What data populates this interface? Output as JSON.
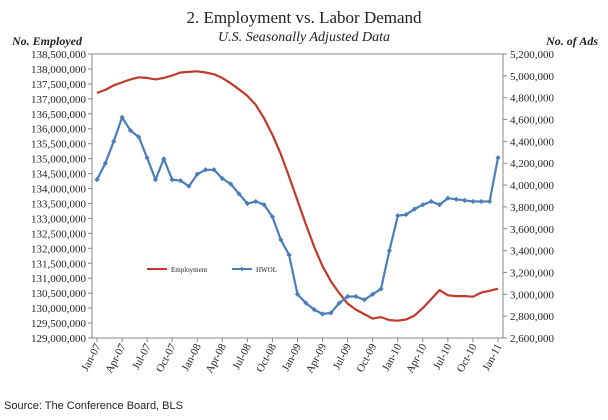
{
  "chart_data": {
    "type": "line",
    "title": "2. Employment vs. Labor Demand",
    "subtitle": "U.S. Seasonally Adjusted Data",
    "ylabel_left": "No. Employed",
    "ylabel_right": "No. of Ads",
    "source": "Source: The Conference Board, BLS",
    "x": [
      "Jan-07",
      "Feb-07",
      "Mar-07",
      "Apr-07",
      "May-07",
      "Jun-07",
      "Jul-07",
      "Aug-07",
      "Sep-07",
      "Oct-07",
      "Nov-07",
      "Dec-07",
      "Jan-08",
      "Feb-08",
      "Mar-08",
      "Apr-08",
      "May-08",
      "Jun-08",
      "Jul-08",
      "Aug-08",
      "Sep-08",
      "Oct-08",
      "Nov-08",
      "Dec-08",
      "Jan-09",
      "Feb-09",
      "Mar-09",
      "Apr-09",
      "May-09",
      "Jun-09",
      "Jul-09",
      "Aug-09",
      "Sep-09",
      "Oct-09",
      "Nov-09",
      "Dec-09",
      "Jan-10",
      "Feb-10",
      "Mar-10",
      "Apr-10",
      "May-10",
      "Jun-10",
      "Jul-10",
      "Aug-10",
      "Sep-10",
      "Oct-10",
      "Nov-10",
      "Dec-10",
      "Jan-11"
    ],
    "x_tick_labels": [
      "Jan-07",
      "Apr-07",
      "Jul-07",
      "Oct-07",
      "Jan-08",
      "Apr-08",
      "Jul-08",
      "Oct-08",
      "Jan-09",
      "Apr-09",
      "Jul-09",
      "Oct-09",
      "Jan-10",
      "Apr-10",
      "Jul-10",
      "Oct-10",
      "Jan-11"
    ],
    "y_left": {
      "min": 129000000,
      "max": 138500000,
      "step": 500000,
      "tick_labels": [
        "129,000,000",
        "129,500,000",
        "130,000,000",
        "130,500,000",
        "131,000,000",
        "131,500,000",
        "132,000,000",
        "132,500,000",
        "133,000,000",
        "133,500,000",
        "134,000,000",
        "134,500,000",
        "135,000,000",
        "135,500,000",
        "136,000,000",
        "136,500,000",
        "137,000,000",
        "137,500,000",
        "138,000,000",
        "138,500,000"
      ]
    },
    "y_right": {
      "min": 2600000,
      "max": 5200000,
      "step": 200000,
      "tick_labels": [
        "2,600,000",
        "2,800,000",
        "3,000,000",
        "3,200,000",
        "3,400,000",
        "3,600,000",
        "3,800,000",
        "4,000,000",
        "4,200,000",
        "4,400,000",
        "4,600,000",
        "4,800,000",
        "5,000,000",
        "5,200,000"
      ]
    },
    "series": [
      {
        "name": "Employment",
        "axis": "left",
        "color": "#c0392b",
        "marker": "none",
        "values": [
          137200000,
          137300000,
          137450000,
          137550000,
          137650000,
          137720000,
          137700000,
          137650000,
          137700000,
          137780000,
          137880000,
          137900000,
          137920000,
          137880000,
          137820000,
          137700000,
          137520000,
          137320000,
          137100000,
          136800000,
          136350000,
          135800000,
          135150000,
          134400000,
          133600000,
          132800000,
          132050000,
          131400000,
          130900000,
          130500000,
          130150000,
          129950000,
          129800000,
          129650000,
          129700000,
          129600000,
          129580000,
          129620000,
          129750000,
          130000000,
          130300000,
          130600000,
          130430000,
          130400000,
          130400000,
          130380000,
          130520000,
          130580000,
          130650000
        ]
      },
      {
        "name": "HWOL",
        "axis": "right",
        "color": "#4a7ebb",
        "marker": "diamond",
        "values": [
          4050000,
          4200000,
          4400000,
          4620000,
          4500000,
          4440000,
          4250000,
          4050000,
          4240000,
          4050000,
          4040000,
          3990000,
          4100000,
          4140000,
          4140000,
          4060000,
          4010000,
          3920000,
          3830000,
          3850000,
          3820000,
          3710000,
          3500000,
          3360000,
          3000000,
          2920000,
          2860000,
          2820000,
          2830000,
          2920000,
          2980000,
          2980000,
          2950000,
          3000000,
          3050000,
          3400000,
          3720000,
          3730000,
          3780000,
          3820000,
          3850000,
          3820000,
          3880000,
          3870000,
          3860000,
          3850000,
          3850000,
          3850000,
          4250000
        ]
      }
    ],
    "legend_placement": "inside-lower-center",
    "grid": false
  }
}
